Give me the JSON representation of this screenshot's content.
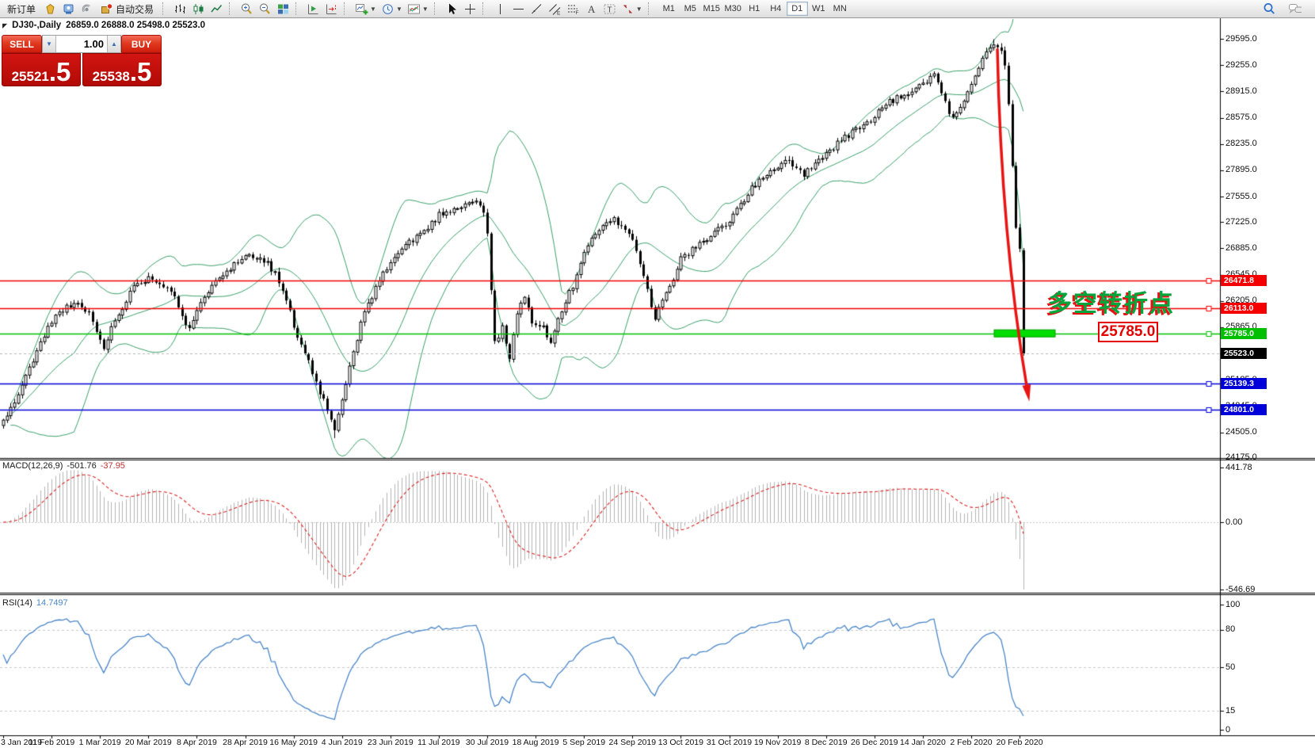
{
  "toolbar": {
    "items": [
      {
        "name": "new-order-button",
        "label": "新订单"
      },
      {
        "name": "market-watch-button",
        "icon": "market-watch-icon"
      },
      {
        "name": "terminal-button",
        "icon": "terminal-icon"
      },
      {
        "name": "signals-button",
        "icon": "signals-icon"
      },
      {
        "name": "autotrading-button",
        "icon": "autotrading-icon",
        "label": "自动交易"
      },
      {
        "sep": true
      },
      {
        "name": "bar-chart-button",
        "icon": "bar-chart-icon"
      },
      {
        "name": "candlestick-chart-button",
        "icon": "candlestick-icon"
      },
      {
        "name": "line-chart-button",
        "icon": "line-chart-icon"
      },
      {
        "sep": true
      },
      {
        "name": "zoom-in-button",
        "icon": "zoom-in-icon"
      },
      {
        "name": "zoom-out-button",
        "icon": "zoom-out-icon"
      },
      {
        "name": "tile-windows-button",
        "icon": "tile-windows-icon"
      },
      {
        "sep": true
      },
      {
        "name": "auto-scroll-button",
        "icon": "auto-scroll-icon"
      },
      {
        "name": "chart-shift-button",
        "icon": "chart-shift-icon"
      },
      {
        "sep": true
      },
      {
        "name": "new-chart-button",
        "icon": "new-chart-icon",
        "dropdown": true
      },
      {
        "name": "profiles-button",
        "icon": "clock-icon",
        "dropdown": true
      },
      {
        "name": "indicators-button",
        "icon": "indicators-icon",
        "dropdown": true
      },
      {
        "sep": true
      },
      {
        "name": "cursor-button",
        "icon": "cursor-icon"
      },
      {
        "name": "crosshair-button",
        "icon": "crosshair-icon"
      },
      {
        "sep": true
      },
      {
        "name": "vertical-line-button",
        "icon": "vertical-line-icon"
      },
      {
        "name": "horizontal-line-button",
        "icon": "horizontal-line-icon"
      },
      {
        "name": "trendline-button",
        "icon": "trendline-icon"
      },
      {
        "name": "channel-button",
        "icon": "channel-icon"
      },
      {
        "name": "fibonacci-button",
        "icon": "fibonacci-icon"
      },
      {
        "name": "text-button",
        "icon": "text-icon"
      },
      {
        "name": "text-label-button",
        "icon": "text-label-icon"
      },
      {
        "name": "arrows-button",
        "icon": "arrows-icon",
        "dropdown": true
      },
      {
        "sep": true
      }
    ],
    "timeframes": [
      "M1",
      "M5",
      "M15",
      "M30",
      "H1",
      "H4",
      "D1",
      "W1",
      "MN"
    ],
    "active_timeframe": "D1",
    "right_items": [
      {
        "name": "search-button",
        "icon": "search-icon"
      },
      {
        "name": "chat-button",
        "icon": "chat-icon"
      }
    ]
  },
  "chart": {
    "symbol_title": "DJ30-,Daily",
    "ohlc_text": "26859.0 26888.0 25498.0 25523.0"
  },
  "trade_panel": {
    "sell_label": "SELL",
    "buy_label": "BUY",
    "volume_value": "1.00",
    "sell_price": {
      "main": "25521",
      "big": ".5"
    },
    "buy_price": {
      "main": "25538",
      "big": ".5"
    }
  },
  "price_axis": {
    "ticks": [
      "29595.0",
      "29255.0",
      "28915.0",
      "28575.0",
      "28235.0",
      "27895.0",
      "27555.0",
      "27225.0",
      "26885.0",
      "26545.0",
      "26205.0",
      "25865.0",
      "25525.0",
      "25185.0",
      "24845.0",
      "24505.0",
      "24175.0"
    ]
  },
  "levels": [
    {
      "value": 26471.8,
      "label": "26471.8",
      "color": "#f40000"
    },
    {
      "value": 26113.0,
      "label": "26113.0",
      "color": "#f40000"
    },
    {
      "value": 25785.0,
      "label": "25785.0",
      "color": "#00c000",
      "highlight_bar": true
    },
    {
      "value": 25139.3,
      "label": "25139.3",
      "color": "#0000d8"
    },
    {
      "value": 24801.0,
      "label": "24801.0",
      "color": "#0000d8"
    }
  ],
  "current_price": {
    "value": 25523.0,
    "label": "25523.0",
    "color": "#000000"
  },
  "annotation": {
    "text": "多空转折点",
    "price_label": "25785.0"
  },
  "macd": {
    "label": "MACD(12,26,9)",
    "main_value": "-501.76",
    "signal_value": "-37.95",
    "axis_ticks": [
      "441.78",
      "0.00",
      "-546.69"
    ]
  },
  "rsi": {
    "label": "RSI(14)",
    "value": "14.7497",
    "axis_ticks": [
      "100",
      "80",
      "50",
      "15",
      "0"
    ],
    "level_lines": [
      80,
      50,
      15
    ]
  },
  "x_axis": {
    "labels": [
      "3 Jan 2019",
      "11 Feb 2019",
      "1 Mar 2019",
      "20 Mar 2019",
      "8 Apr 2019",
      "28 Apr 2019",
      "16 May 2019",
      "4 Jun 2019",
      "23 Jun 2019",
      "11 Jul 2019",
      "30 Jul 2019",
      "18 Aug 2019",
      "5 Sep 2019",
      "24 Sep 2019",
      "13 Oct 2019",
      "31 Oct 2019",
      "19 Nov 2019",
      "8 Dec 2019",
      "26 Dec 2019",
      "14 Jan 2020",
      "2 Feb 2020",
      "20 Feb 2020"
    ]
  },
  "chart_data": {
    "type": "candlestick",
    "symbol": "DJ30-",
    "timeframe": "Daily",
    "ylim": [
      24175,
      29595
    ],
    "y_step": 340,
    "candle_count": 275,
    "last_candle": {
      "open": 26859.0,
      "high": 26888.0,
      "low": 25498.0,
      "close": 25523.0
    },
    "price_anchors": [
      [
        0,
        24650
      ],
      [
        2,
        24800
      ],
      [
        5,
        25100
      ],
      [
        8,
        25450
      ],
      [
        11,
        25750
      ],
      [
        13,
        25950
      ],
      [
        16,
        26100
      ],
      [
        20,
        26150
      ],
      [
        23,
        26050
      ],
      [
        25,
        25800
      ],
      [
        27,
        25600
      ],
      [
        29,
        25850
      ],
      [
        31,
        26050
      ],
      [
        34,
        26300
      ],
      [
        36,
        26450
      ],
      [
        39,
        26500
      ],
      [
        43,
        26420
      ],
      [
        46,
        26300
      ],
      [
        48,
        26000
      ],
      [
        50,
        25820
      ],
      [
        52,
        26050
      ],
      [
        55,
        26350
      ],
      [
        57,
        26500
      ],
      [
        60,
        26600
      ],
      [
        63,
        26700
      ],
      [
        66,
        26820
      ],
      [
        69,
        26760
      ],
      [
        71,
        26700
      ],
      [
        73,
        26550
      ],
      [
        75,
        26350
      ],
      [
        77,
        26050
      ],
      [
        79,
        25700
      ],
      [
        82,
        25400
      ],
      [
        84,
        25150
      ],
      [
        86,
        24900
      ],
      [
        88,
        24650
      ],
      [
        89,
        24550
      ],
      [
        91,
        24900
      ],
      [
        93,
        25350
      ],
      [
        96,
        25900
      ],
      [
        98,
        26150
      ],
      [
        100,
        26400
      ],
      [
        102,
        26550
      ],
      [
        104,
        26700
      ],
      [
        107,
        26880
      ],
      [
        110,
        27000
      ],
      [
        114,
        27150
      ],
      [
        117,
        27320
      ],
      [
        121,
        27400
      ],
      [
        125,
        27480
      ],
      [
        127,
        27500
      ],
      [
        129,
        27350
      ],
      [
        130,
        27100
      ],
      [
        131,
        26350
      ],
      [
        132,
        25650
      ],
      [
        134,
        25850
      ],
      [
        136,
        25450
      ],
      [
        138,
        26050
      ],
      [
        140,
        26250
      ],
      [
        142,
        25950
      ],
      [
        145,
        25850
      ],
      [
        147,
        25650
      ],
      [
        150,
        26100
      ],
      [
        153,
        26400
      ],
      [
        156,
        26850
      ],
      [
        159,
        27050
      ],
      [
        162,
        27200
      ],
      [
        164,
        27250
      ],
      [
        167,
        27150
      ],
      [
        169,
        27000
      ],
      [
        171,
        26700
      ],
      [
        173,
        26350
      ],
      [
        175,
        25950
      ],
      [
        177,
        26250
      ],
      [
        180,
        26500
      ],
      [
        182,
        26750
      ],
      [
        185,
        26870
      ],
      [
        188,
        26950
      ],
      [
        191,
        27080
      ],
      [
        195,
        27250
      ],
      [
        198,
        27450
      ],
      [
        201,
        27650
      ],
      [
        204,
        27820
      ],
      [
        208,
        27950
      ],
      [
        211,
        28050
      ],
      [
        213,
        27900
      ],
      [
        215,
        27820
      ],
      [
        217,
        27950
      ],
      [
        219,
        28050
      ],
      [
        221,
        28100
      ],
      [
        224,
        28250
      ],
      [
        227,
        28350
      ],
      [
        230,
        28450
      ],
      [
        232,
        28500
      ],
      [
        234,
        28600
      ],
      [
        237,
        28750
      ],
      [
        240,
        28820
      ],
      [
        243,
        28900
      ],
      [
        246,
        28970
      ],
      [
        249,
        29100
      ],
      [
        250,
        29150
      ],
      [
        251,
        29000
      ],
      [
        252,
        28850
      ],
      [
        254,
        28650
      ],
      [
        255,
        28550
      ],
      [
        257,
        28700
      ],
      [
        259,
        28900
      ],
      [
        261,
        29100
      ],
      [
        263,
        29350
      ],
      [
        265,
        29480
      ],
      [
        266,
        29530
      ],
      [
        267,
        29500
      ],
      [
        268,
        29440
      ],
      [
        269,
        29250
      ],
      [
        270,
        28750
      ],
      [
        271,
        27950
      ],
      [
        272,
        27150
      ],
      [
        273,
        26880
      ],
      [
        274,
        25523
      ]
    ],
    "extreme_high": {
      "index": 266,
      "price": 29590
    },
    "extreme_low": {
      "index": 89,
      "price": 24430
    },
    "x_label_every_n_candles": 13,
    "indicators": [
      {
        "name": "Bollinger Bands",
        "period": 20,
        "deviation": 2,
        "color": "#3aa06b"
      },
      {
        "name": "MACD",
        "fast": 12,
        "slow": 26,
        "signal": 9,
        "histogram_color": "#b4b4b4",
        "signal_color": "#dd2222",
        "last_main": -501.76,
        "last_signal": -37.95,
        "axis_max": 441.78,
        "axis_min": -546.69
      },
      {
        "name": "RSI",
        "period": 14,
        "color": "#4a86c8",
        "last_value": 14.7497
      }
    ],
    "trend_arrow": {
      "color": "#e81414",
      "from_price": 29530,
      "to_price": 24900
    },
    "colors": {
      "bull": "#ffffff",
      "bear": "#000000",
      "wick": "#000000"
    }
  }
}
